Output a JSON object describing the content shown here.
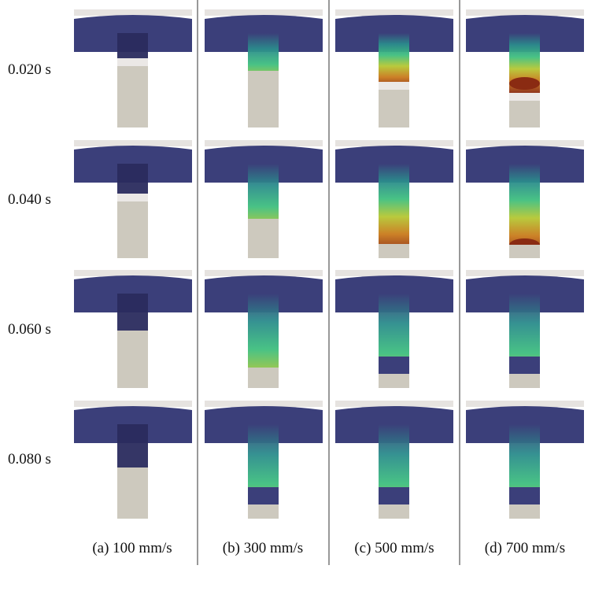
{
  "time_labels": [
    "0.020 s",
    "0.040 s",
    "0.060 s",
    "0.080 s"
  ],
  "columns": [
    {
      "label": "(a) 100 mm/s"
    },
    {
      "label": "(b) 300 mm/s"
    },
    {
      "label": "(c) 500 mm/s"
    },
    {
      "label": "(d) 700 mm/s"
    }
  ],
  "colors": {
    "particle_bed": "#3b3f7a",
    "particle_dark": "#2a2b5e",
    "piston": "#cdc9be",
    "piston_gap": "#ebe8e6",
    "divider": "#333333",
    "gradient": [
      "#3b3f7a",
      "#2b8c8c",
      "#3fbf7f",
      "#b5c733",
      "#c97a1c",
      "#8a2b12"
    ]
  }
}
